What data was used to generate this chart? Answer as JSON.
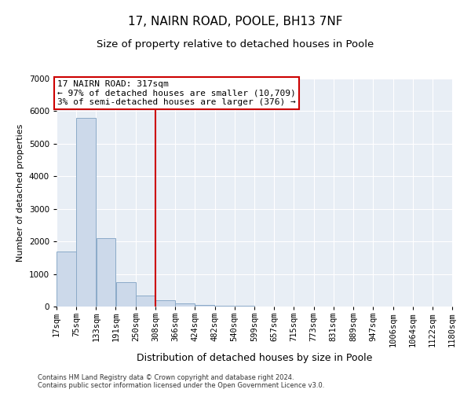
{
  "title": "17, NAIRN ROAD, POOLE, BH13 7NF",
  "subtitle": "Size of property relative to detached houses in Poole",
  "xlabel": "Distribution of detached houses by size in Poole",
  "ylabel": "Number of detached properties",
  "bar_color": "#ccd9ea",
  "bar_edge_color": "#8baac8",
  "vline_color": "#cc0000",
  "vline_x": 308,
  "annotation_text": "17 NAIRN ROAD: 317sqm\n← 97% of detached houses are smaller (10,709)\n3% of semi-detached houses are larger (376) →",
  "annotation_box_edgecolor": "#cc0000",
  "bin_edges": [
    17,
    75,
    133,
    191,
    250,
    308,
    366,
    424,
    482,
    540,
    599,
    657,
    715,
    773,
    831,
    889,
    947,
    1006,
    1064,
    1122,
    1180
  ],
  "bin_labels": [
    "17sqm",
    "75sqm",
    "133sqm",
    "191sqm",
    "250sqm",
    "308sqm",
    "366sqm",
    "424sqm",
    "482sqm",
    "540sqm",
    "599sqm",
    "657sqm",
    "715sqm",
    "773sqm",
    "831sqm",
    "889sqm",
    "947sqm",
    "1006sqm",
    "1064sqm",
    "1122sqm",
    "1180sqm"
  ],
  "bar_heights": [
    1700,
    5800,
    2100,
    750,
    350,
    200,
    100,
    50,
    30,
    20,
    10,
    5,
    3,
    2,
    1,
    1,
    0,
    0,
    0,
    0
  ],
  "ylim": [
    0,
    7000
  ],
  "yticks": [
    0,
    1000,
    2000,
    3000,
    4000,
    5000,
    6000,
    7000
  ],
  "background_color": "#e8eef5",
  "footer_text": "Contains HM Land Registry data © Crown copyright and database right 2024.\nContains public sector information licensed under the Open Government Licence v3.0.",
  "title_fontsize": 11,
  "subtitle_fontsize": 9.5,
  "xlabel_fontsize": 9,
  "ylabel_fontsize": 8,
  "tick_fontsize": 7.5,
  "annotation_fontsize": 8,
  "footer_fontsize": 6
}
